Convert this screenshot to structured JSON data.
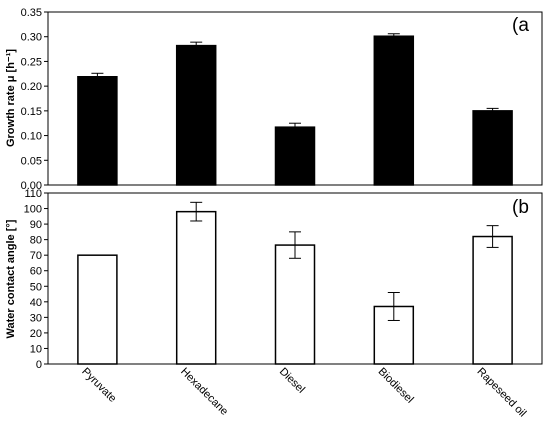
{
  "chart_data": [
    {
      "type": "bar",
      "panel_label": "(a",
      "ylabel": "Growth rate μ [h⁻¹]",
      "ylim": [
        0,
        0.35
      ],
      "yticks": [
        "0.00",
        "0.05",
        "0.10",
        "0.15",
        "0.20",
        "0.25",
        "0.30",
        "0.35"
      ],
      "categories": [
        "Pyruvate",
        "Hexadecane",
        "Diesel",
        "Biodiesel",
        "Rapeseed oil"
      ],
      "values": [
        0.219,
        0.282,
        0.117,
        0.301,
        0.15
      ],
      "errors": [
        0.007,
        0.007,
        0.008,
        0.005,
        0.005
      ],
      "fill": "#000000"
    },
    {
      "type": "bar",
      "panel_label": "(b",
      "ylabel": "Water contact angle [°]",
      "ylim": [
        0,
        110
      ],
      "yticks": [
        "0",
        "10",
        "20",
        "30",
        "40",
        "50",
        "60",
        "70",
        "80",
        "90",
        "100",
        "110"
      ],
      "categories": [
        "Pyruvate",
        "Hexadecane",
        "Diesel",
        "Biodiesel",
        "Rapeseed oil"
      ],
      "values": [
        70,
        98,
        76.5,
        37,
        82
      ],
      "errors": [
        0,
        6,
        8.5,
        9,
        7
      ],
      "fill": "#ffffff"
    }
  ]
}
